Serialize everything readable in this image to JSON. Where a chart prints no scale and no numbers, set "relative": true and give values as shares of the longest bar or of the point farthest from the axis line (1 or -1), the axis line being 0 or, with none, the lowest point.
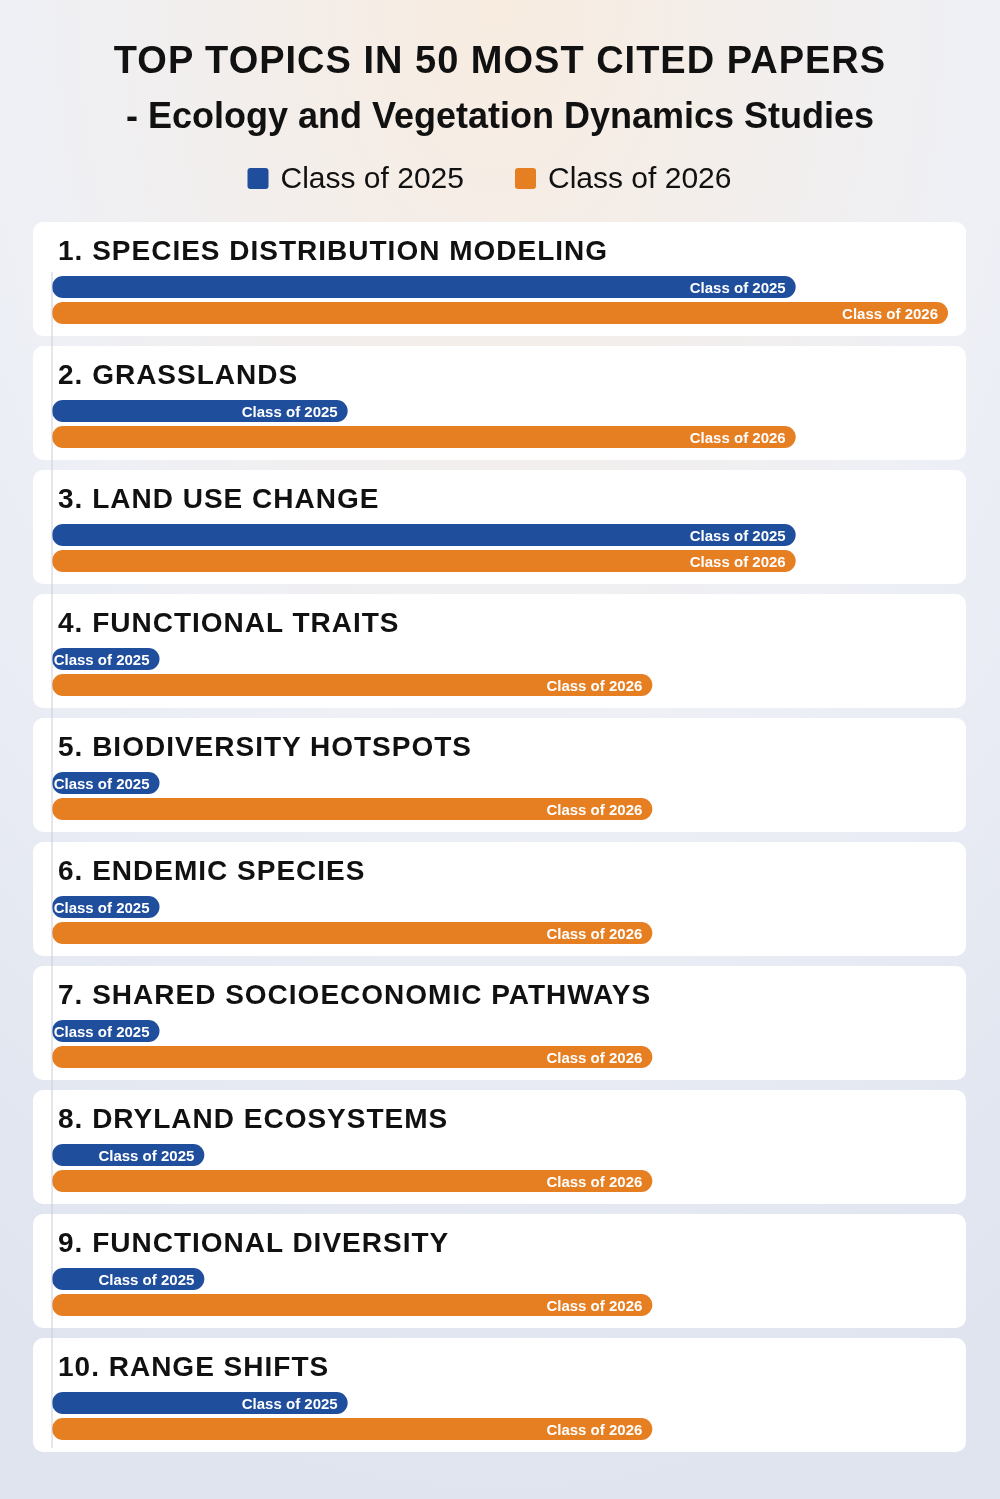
{
  "chart_data": {
    "type": "bar",
    "orientation": "horizontal",
    "relative": true,
    "title": "TOP TOPICS IN 50 MOST CITED PAPERS",
    "subtitle": "- Ecology and Vegetation Dynamics Studies",
    "legend": "top",
    "categories": [
      "1. SPECIES DISTRIBUTION MODELING",
      "2. GRASSLANDS",
      "3. LAND USE CHANGE",
      "4. FUNCTIONAL TRAITS",
      "5. BIODIVERSITY HOTSPOTS",
      "6. ENDEMIC SPECIES",
      "7. SHARED SOCIOECONOMIC PATHWAYS",
      "8. DRYLAND ECOSYSTEMS",
      "9. FUNCTIONAL DIVERSITY",
      "10. RANGE SHIFTS"
    ],
    "series": [
      {
        "name": "Class of 2025",
        "color": "#1f4e9c",
        "values": [
          0.83,
          0.33,
          0.83,
          0.12,
          0.12,
          0.12,
          0.12,
          0.17,
          0.17,
          0.33
        ]
      },
      {
        "name": "Class of 2026",
        "color": "#e67e22",
        "values": [
          1,
          0.83,
          0.83,
          0.67,
          0.67,
          0.67,
          0.67,
          0.67,
          0.67,
          0.67
        ]
      }
    ]
  }
}
